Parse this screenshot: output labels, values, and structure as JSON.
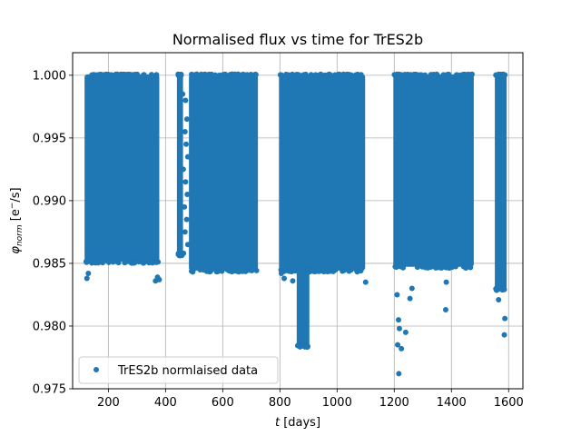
{
  "chart_data": {
    "type": "scatter",
    "title": "Normalised flux vs time for TrES2b",
    "xlabel_var": "t",
    "xlabel_unit": "[days]",
    "ylabel_var": "φ",
    "ylabel_sub": "norm",
    "ylabel_unit_pre": "[e",
    "ylabel_unit_sup": "−",
    "ylabel_unit_post": "/s]",
    "xlim": [
      75,
      1650
    ],
    "ylim": [
      0.975,
      1.0018
    ],
    "xticks": [
      200,
      400,
      600,
      800,
      1000,
      1200,
      1400,
      1600
    ],
    "xtick_labels": [
      "200",
      "400",
      "600",
      "800",
      "1000",
      "1200",
      "1400",
      "1600"
    ],
    "yticks": [
      0.975,
      0.98,
      0.985,
      0.99,
      0.995,
      1.0
    ],
    "ytick_labels": [
      "0.975",
      "0.980",
      "0.985",
      "0.990",
      "0.995",
      "1.000"
    ],
    "grid": true,
    "legend_position": "lower-left",
    "series": [
      {
        "name": "TrES2b normlaised data",
        "color": "#1f77b4",
        "dense_segments": [
          {
            "x0": 120,
            "x1": 375,
            "ymin": 0.9852,
            "ymax": 1.0
          },
          {
            "x0": 443,
            "x1": 458,
            "ymin": 0.9858,
            "ymax": 1.0
          },
          {
            "x0": 485,
            "x1": 720,
            "ymin": 0.9845,
            "ymax": 1.0
          },
          {
            "x0": 800,
            "x1": 1095,
            "ymin": 0.9845,
            "ymax": 1.0
          },
          {
            "x0": 862,
            "x1": 900,
            "ymin": 0.9785,
            "ymax": 0.9845
          },
          {
            "x0": 1200,
            "x1": 1475,
            "ymin": 0.9848,
            "ymax": 1.0
          },
          {
            "x0": 1555,
            "x1": 1590,
            "ymin": 0.983,
            "ymax": 1.0
          }
        ],
        "sparse_points": [
          [
            125,
            0.9838
          ],
          [
            130,
            0.9842
          ],
          [
            365,
            0.9836
          ],
          [
            372,
            0.9839
          ],
          [
            378,
            0.9837
          ],
          [
            460,
            0.9985
          ],
          [
            470,
            0.998
          ],
          [
            475,
            0.9965
          ],
          [
            468,
            0.9955
          ],
          [
            472,
            0.9945
          ],
          [
            478,
            0.9935
          ],
          [
            462,
            0.9925
          ],
          [
            470,
            0.9915
          ],
          [
            476,
            0.9905
          ],
          [
            466,
            0.9895
          ],
          [
            474,
            0.9885
          ],
          [
            468,
            0.9875
          ],
          [
            478,
            0.9865
          ],
          [
            463,
            0.9858
          ],
          [
            805,
            0.9842
          ],
          [
            815,
            0.9838
          ],
          [
            845,
            0.9836
          ],
          [
            1100,
            0.9835
          ],
          [
            1210,
            0.9825
          ],
          [
            1215,
            0.9805
          ],
          [
            1218,
            0.9798
          ],
          [
            1212,
            0.9785
          ],
          [
            1225,
            0.9782
          ],
          [
            1240,
            0.9795
          ],
          [
            1255,
            0.9822
          ],
          [
            1262,
            0.983
          ],
          [
            1216,
            0.9762
          ],
          [
            1380,
            0.9813
          ],
          [
            1382,
            0.9835
          ],
          [
            1565,
            0.9821
          ],
          [
            1587,
            0.9806
          ],
          [
            1585,
            0.9793
          ]
        ]
      }
    ]
  }
}
